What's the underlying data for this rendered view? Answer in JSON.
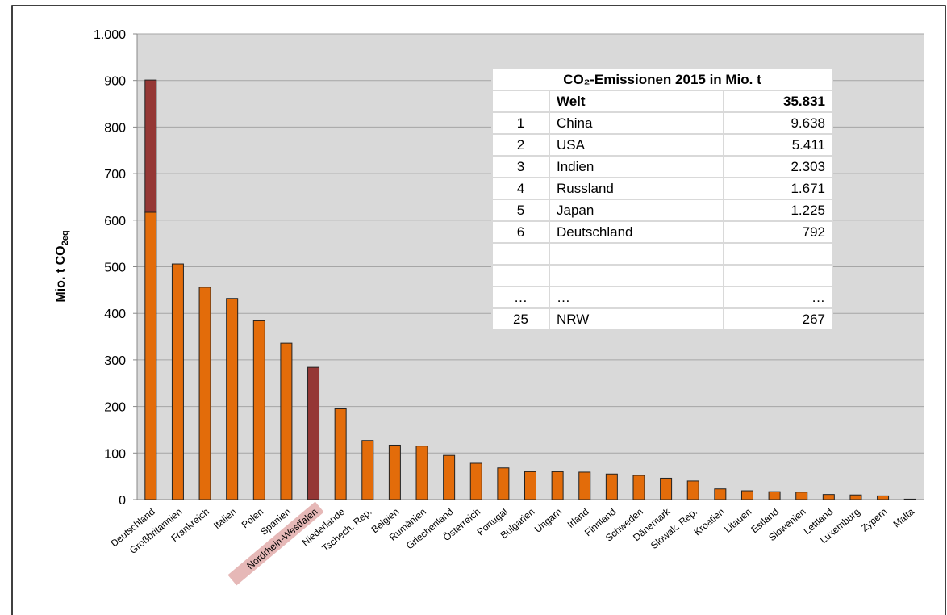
{
  "chart_data": {
    "type": "bar",
    "ylabel": "Mio. t CO",
    "ylabel_sub": "2eq",
    "categories": [
      "Deutschland",
      "Großbritannien",
      "Frankreich",
      "Italien",
      "Polen",
      "Spanien",
      "Nordrhein-Westfalen",
      "Niederlande",
      "Tschech. Rep.",
      "Belgien",
      "Rumänien",
      "Griechenland",
      "Österreich",
      "Portugal",
      "Bulgarien",
      "Ungarn",
      "Irland",
      "Finnland",
      "Schweden",
      "Dänemark",
      "Slowak. Rep.",
      "Kroatien",
      "Litauen",
      "Estland",
      "Slowenien",
      "Lettland",
      "Luxemburg",
      "Zypern",
      "Malta"
    ],
    "series": [
      {
        "color": "#e36c0a",
        "values": [
          617,
          506,
          456,
          432,
          384,
          336,
          null,
          195,
          127,
          117,
          115,
          95,
          78,
          68,
          60,
          60,
          59,
          55,
          52,
          46,
          40,
          23,
          19,
          17,
          16,
          11,
          10,
          8,
          1
        ]
      },
      {
        "color": "#953735",
        "values": [
          284,
          null,
          null,
          null,
          null,
          null,
          284,
          null,
          null,
          null,
          null,
          null,
          null,
          null,
          null,
          null,
          null,
          null,
          null,
          null,
          null,
          null,
          null,
          null,
          null,
          null,
          null,
          null,
          null
        ]
      }
    ],
    "highlight_category": 6,
    "ylim": [
      0,
      1000
    ],
    "yticks": [
      0,
      100,
      200,
      300,
      400,
      500,
      600,
      700,
      800,
      900,
      {
        "value": 1000,
        "label": "1.000"
      }
    ],
    "grid": true
  },
  "table": {
    "title": "CO₂-Emissionen 2015 in Mio. t",
    "rows": [
      {
        "name": "Welt",
        "value": "35.831"
      },
      {
        "rank": "1",
        "name": "China",
        "value": "9.638"
      },
      {
        "rank": "2",
        "name": "USA",
        "value": "5.411"
      },
      {
        "rank": "3",
        "name": "Indien",
        "value": "2.303"
      },
      {
        "rank": "4",
        "name": "Russland",
        "value": "1.671"
      },
      {
        "rank": "5",
        "name": "Japan",
        "value": "1.225"
      },
      {
        "rank": "6",
        "name": "Deutschland",
        "value": "792"
      },
      {
        "rank": "…",
        "name": "…",
        "value": "…"
      },
      {
        "rank": "25",
        "name": "NRW",
        "value": "267"
      }
    ]
  }
}
